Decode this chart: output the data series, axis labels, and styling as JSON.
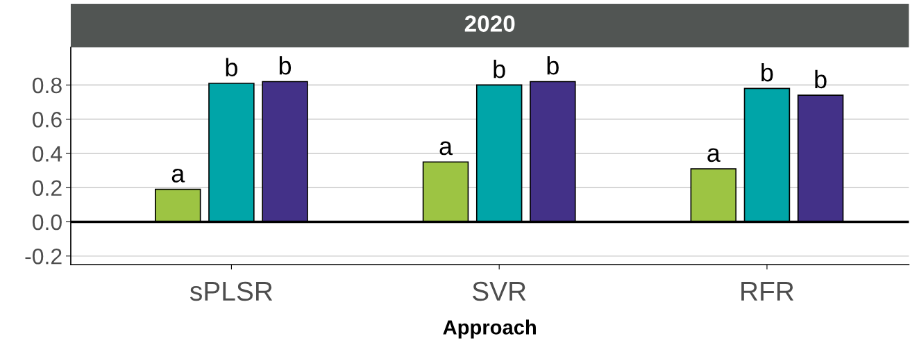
{
  "chart_data": {
    "type": "bar",
    "title": "2020",
    "xlabel": "Approach",
    "categories": [
      "sPLSR",
      "SVR",
      "RFR"
    ],
    "series": [
      {
        "color": "#9dc443",
        "values": [
          0.19,
          0.35,
          0.31
        ],
        "value_labels": [
          "a",
          "a",
          "a"
        ]
      },
      {
        "color": "#00a5a8",
        "values": [
          0.81,
          0.8,
          0.78
        ],
        "value_labels": [
          "b",
          "b",
          "b"
        ]
      },
      {
        "color": "#433188",
        "values": [
          0.82,
          0.82,
          0.74
        ],
        "value_labels": [
          "b",
          "b",
          "b"
        ]
      }
    ],
    "ylim": [
      -0.25,
      1.02
    ],
    "yticks": [
      -0.2,
      {
        "value": 0,
        "label": "0.0"
      },
      0.2,
      0.4,
      0.6,
      0.8
    ],
    "grid": "y",
    "legend": false,
    "ref_lines": [
      {
        "axis": "y",
        "value": 0,
        "color": "#000000"
      }
    ]
  }
}
